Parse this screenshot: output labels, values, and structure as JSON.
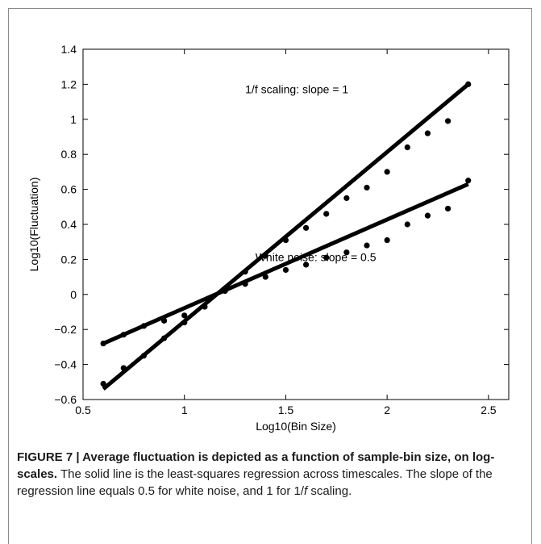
{
  "chart_data": {
    "type": "scatter",
    "xlabel": "Log10(Bin Size)",
    "ylabel": "Log10(Fluctuation)",
    "xlim": [
      0.5,
      2.6
    ],
    "ylim": [
      -0.6,
      1.4
    ],
    "xticks": [
      0.5,
      1,
      1.5,
      2,
      2.5
    ],
    "xtick_labels": [
      "0.5",
      "1",
      "1.5",
      "2",
      "2.5"
    ],
    "yticks": [
      -0.6,
      -0.4,
      -0.2,
      0,
      0.2,
      0.4,
      0.6,
      0.8,
      1,
      1.2,
      1.4
    ],
    "ytick_labels": [
      "−0.6",
      "−0.4",
      "−0.2",
      "0",
      "0.2",
      "0.4",
      "0.6",
      "0.8",
      "1",
      "1.2",
      "1.4"
    ],
    "grid": false,
    "series": [
      {
        "name": "1/f scaling: slope = 1",
        "x": [
          0.6,
          0.7,
          0.8,
          0.9,
          1.0,
          1.1,
          1.2,
          1.3,
          1.4,
          1.5,
          1.6,
          1.7,
          1.8,
          1.9,
          2.0,
          2.1,
          2.2,
          2.3,
          2.4
        ],
        "y": [
          -0.51,
          -0.42,
          -0.35,
          -0.25,
          -0.16,
          -0.07,
          0.02,
          0.13,
          0.22,
          0.31,
          0.38,
          0.46,
          0.55,
          0.61,
          0.7,
          0.84,
          0.92,
          0.99,
          1.2
        ],
        "fit": {
          "x": [
            0.6,
            2.4
          ],
          "y": [
            -0.54,
            1.2
          ]
        },
        "label_at": [
          1.3,
          1.15
        ]
      },
      {
        "name": "White noise: slope = 0.5",
        "x": [
          0.6,
          0.7,
          0.8,
          0.9,
          1.0,
          1.1,
          1.2,
          1.3,
          1.4,
          1.5,
          1.6,
          1.7,
          1.8,
          1.9,
          2.0,
          2.1,
          2.2,
          2.3,
          2.4
        ],
        "y": [
          -0.28,
          -0.23,
          -0.18,
          -0.15,
          -0.12,
          -0.07,
          0.02,
          0.06,
          0.1,
          0.14,
          0.17,
          0.21,
          0.24,
          0.28,
          0.31,
          0.4,
          0.45,
          0.49,
          0.65
        ],
        "fit": {
          "x": [
            0.6,
            2.4
          ],
          "y": [
            -0.28,
            0.63
          ]
        },
        "label_at": [
          1.35,
          0.19
        ]
      }
    ]
  },
  "caption": {
    "bold": "FIGURE 7 | Average fluctuation is depicted as a function of sample-bin size, on log-scales.",
    "text_1": " The solid line is the least-squares regression across timescales. The slope of the regression line equals 0.5 for white noise, and 1 for 1/",
    "italic": "f",
    "text_2": " scaling."
  }
}
